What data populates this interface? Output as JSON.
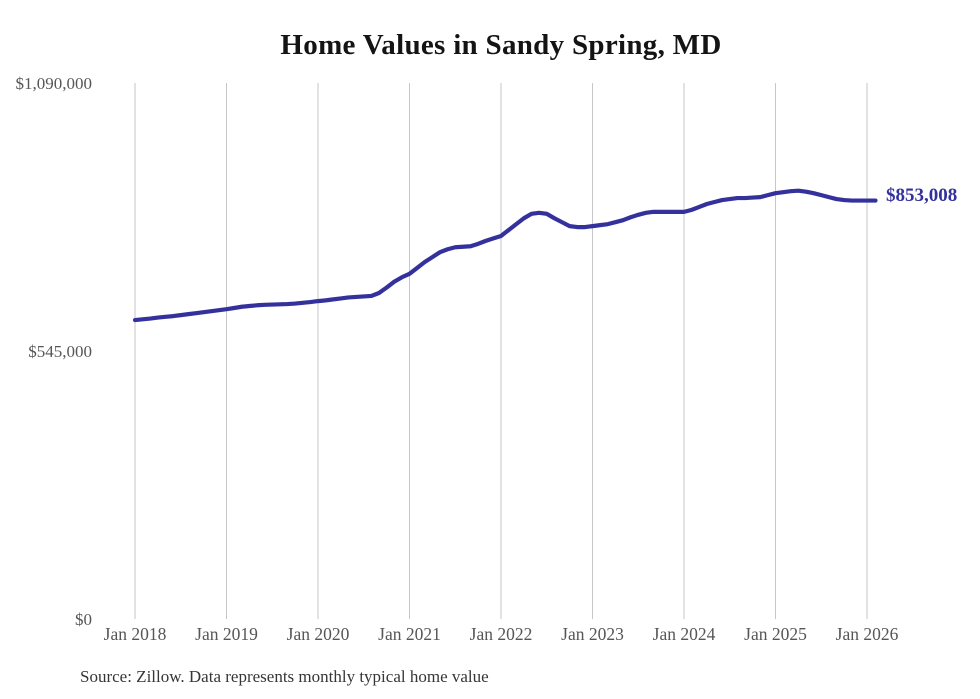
{
  "page": {
    "title": "Home Values in Sandy Spring, MD",
    "source_note": "Source: Zillow. Data represents monthly typical home value",
    "end_label": "$853,008"
  },
  "colors": {
    "background": "#ffffff",
    "line": "#34319d",
    "end_label": "#34319d",
    "grid": "#c6c6c6",
    "axis_text": "#565656",
    "title_text": "#141414",
    "source_text": "#363636"
  },
  "chart_data": {
    "type": "line",
    "title": "Home Values in Sandy Spring, MD",
    "xlabel": "",
    "ylabel": "",
    "legend": "none",
    "grid": "vertical-only",
    "ylim": [
      0,
      1090000
    ],
    "y_ticks": [
      0,
      545000,
      1090000
    ],
    "y_tick_labels": [
      "$0",
      "$545,000",
      "$1,090,000"
    ],
    "x_tick_labels": [
      "Jan 2018",
      "Jan 2019",
      "Jan 2020",
      "Jan 2021",
      "Jan 2022",
      "Jan 2023",
      "Jan 2024",
      "Jan 2025",
      "Jan 2026"
    ],
    "x_unit": "month",
    "start_month": "2018-01",
    "end_month": "2026-01",
    "last_value": 853008,
    "last_point_label": "$853,008",
    "series": [
      {
        "name": "Monthly typical home value",
        "values": [
          610000,
          611500,
          613000,
          615000,
          616500,
          618000,
          620000,
          622000,
          624000,
          626000,
          628000,
          630000,
          632000,
          634500,
          637000,
          638500,
          640000,
          641000,
          641500,
          642000,
          642500,
          643500,
          645000,
          646500,
          648500,
          650000,
          652000,
          654000,
          656000,
          657000,
          658000,
          659000,
          665000,
          676000,
          688000,
          697000,
          704000,
          716000,
          728000,
          738000,
          748000,
          754000,
          758000,
          759000,
          760000,
          765000,
          771000,
          776000,
          781000,
          793000,
          805000,
          817000,
          826000,
          828000,
          826000,
          817000,
          809000,
          801000,
          799000,
          799000,
          801000,
          803000,
          805000,
          809000,
          813000,
          819000,
          824000,
          828000,
          830000,
          830000,
          830000,
          830000,
          830000,
          834000,
          840000,
          846000,
          850000,
          854000,
          856000,
          858000,
          858000,
          859000,
          860000,
          864000,
          868000,
          870000,
          872000,
          873000,
          871000,
          868000,
          864000,
          860000,
          856000,
          854000,
          853000,
          853000,
          853008
        ]
      }
    ]
  }
}
